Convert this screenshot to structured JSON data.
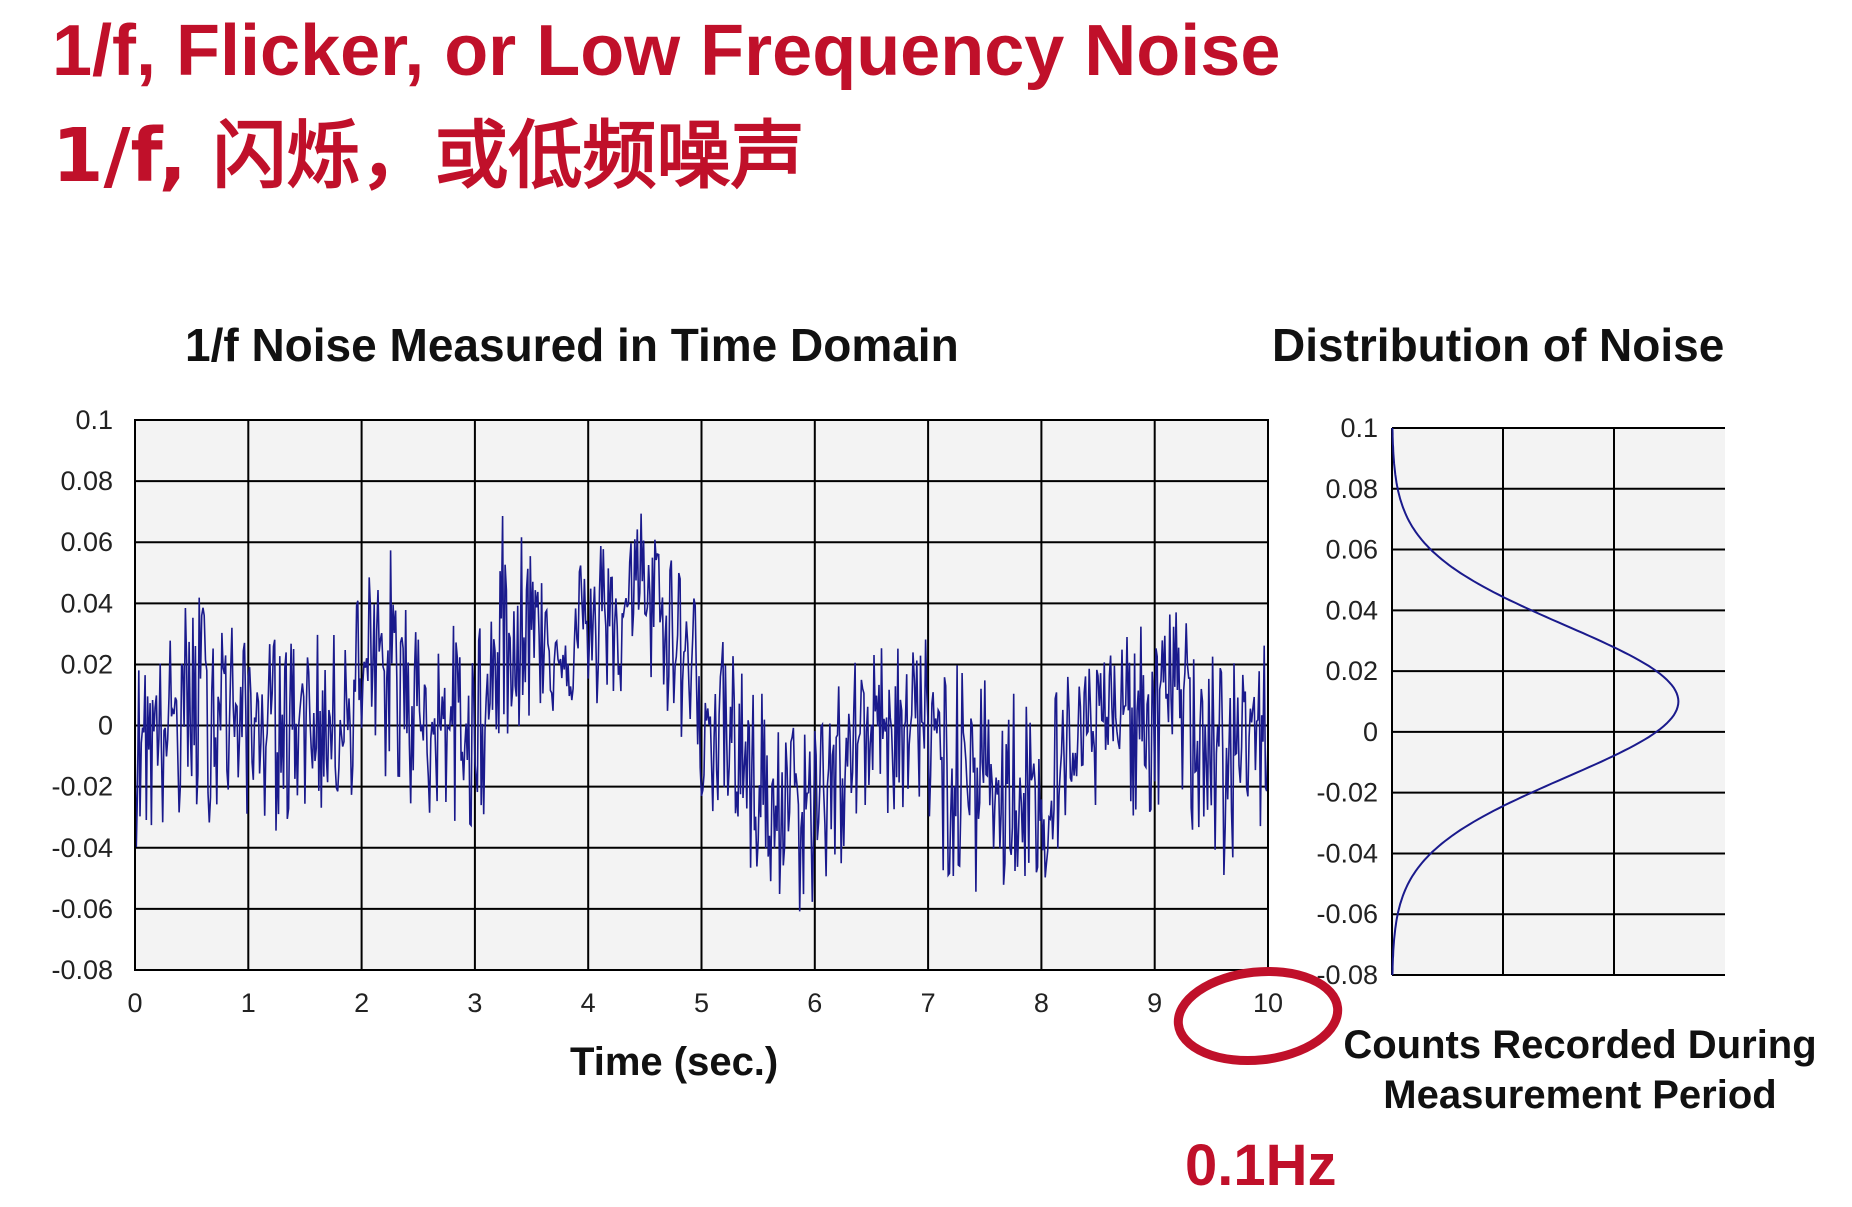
{
  "header": {
    "title_en": "1/f, Flicker, or Low Frequency Noise",
    "title_cn": "1/f, 闪烁，或低频噪声"
  },
  "chart_data": [
    {
      "type": "line",
      "title": "1/f Noise Measured in Time Domain",
      "xlabel": "Time (sec.)",
      "ylabel": "",
      "xlim": [
        0,
        10
      ],
      "ylim": [
        -0.08,
        0.1
      ],
      "xticks": [
        "0",
        "1",
        "2",
        "3",
        "4",
        "5",
        "6",
        "7",
        "8",
        "9",
        "10"
      ],
      "yticks": [
        "0.1",
        "0.08",
        "0.06",
        "0.04",
        "0.02",
        "0",
        "-0.02",
        "-0.04",
        "-0.06",
        "-0.08"
      ],
      "grid": true,
      "color": "#1a1a8c",
      "series": [
        {
          "x": [
            0,
            0.25,
            0.5,
            0.75,
            1,
            1.25,
            1.5,
            1.75,
            2,
            2.25,
            2.5,
            2.75,
            3,
            3.25,
            3.5,
            3.75,
            4,
            4.25,
            4.5,
            4.75,
            5,
            5.25,
            5.5,
            5.75,
            6,
            6.25,
            6.5,
            6.75,
            7,
            7.25,
            7.5,
            7.75,
            8,
            8.25,
            8.5,
            8.75,
            9,
            9.25,
            9.5,
            9.75,
            10
          ],
          "y": [
            0.005,
            0.0,
            0.01,
            0.012,
            0.0,
            0.005,
            0.004,
            0.0,
            0.015,
            0.02,
            0.005,
            0.0,
            -0.01,
            0.03,
            0.032,
            0.025,
            0.03,
            0.035,
            0.045,
            0.03,
            0.01,
            -0.005,
            -0.02,
            -0.03,
            -0.025,
            -0.01,
            0.0,
            0.005,
            0.0,
            -0.02,
            -0.015,
            -0.02,
            -0.025,
            -0.01,
            0.0,
            0.005,
            0.01,
            0.012,
            -0.005,
            -0.01,
            0.0
          ],
          "min": [
            -0.04,
            -0.04,
            -0.035,
            -0.03,
            -0.03,
            -0.035,
            -0.03,
            -0.03,
            -0.02,
            -0.02,
            -0.03,
            -0.035,
            -0.04,
            -0.005,
            0.0,
            0.005,
            0.005,
            0.005,
            0.015,
            0.0,
            -0.025,
            -0.04,
            -0.06,
            -0.065,
            -0.06,
            -0.05,
            -0.03,
            -0.03,
            -0.035,
            -0.06,
            -0.055,
            -0.06,
            -0.055,
            -0.045,
            -0.03,
            -0.03,
            -0.03,
            -0.03,
            -0.055,
            -0.05,
            -0.03
          ],
          "max": [
            0.02,
            0.025,
            0.045,
            0.045,
            0.025,
            0.03,
            0.03,
            0.03,
            0.05,
            0.06,
            0.035,
            0.035,
            0.03,
            0.07,
            0.065,
            0.055,
            0.06,
            0.065,
            0.075,
            0.065,
            0.04,
            0.025,
            0.015,
            0.0,
            0.01,
            0.02,
            0.025,
            0.035,
            0.03,
            0.02,
            0.02,
            0.015,
            0.01,
            0.02,
            0.025,
            0.03,
            0.035,
            0.04,
            0.025,
            0.02,
            0.03
          ]
        }
      ]
    },
    {
      "type": "line",
      "title": "Distribution of Noise",
      "xlabel": "Counts Recorded During Measurement Period",
      "ylabel": "",
      "ylim": [
        -0.08,
        0.1
      ],
      "yticks": [
        "0.1",
        "0.08",
        "0.06",
        "0.04",
        "0.02",
        "0",
        "-0.02",
        "-0.04",
        "-0.06",
        "-0.08"
      ],
      "grid": true,
      "distribution": {
        "mean": 0.01,
        "std": 0.025
      }
    }
  ],
  "annotation": {
    "highlighted_tick": "10",
    "label": "0.1Hz",
    "circle_color": "#c0102a"
  }
}
